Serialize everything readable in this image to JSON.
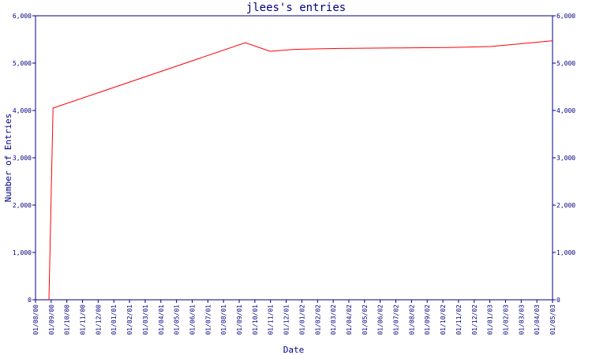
{
  "chart_data": {
    "type": "line",
    "title": "jlees's entries",
    "xlabel": "Date",
    "ylabel": "Number of Entries",
    "ylim": [
      0,
      6000
    ],
    "y_ticks": [
      0,
      1000,
      2000,
      3000,
      4000,
      5000,
      6000
    ],
    "y_tick_labels": [
      "0",
      "1,000",
      "2,000",
      "3,000",
      "4,000",
      "5,000",
      "6,000"
    ],
    "x_range": [
      "2000-08-01",
      "2003-05-01"
    ],
    "x_tick_labels": [
      "01/08/00",
      "01/09/00",
      "01/10/00",
      "01/11/00",
      "01/12/00",
      "01/01/01",
      "01/02/01",
      "01/03/01",
      "01/04/01",
      "01/05/01",
      "01/06/01",
      "01/07/01",
      "01/08/01",
      "01/09/01",
      "01/10/01",
      "01/11/01",
      "01/12/01",
      "01/01/02",
      "01/02/02",
      "01/03/02",
      "01/04/02",
      "01/05/02",
      "01/06/02",
      "01/07/02",
      "01/08/02",
      "01/09/02",
      "01/10/02",
      "01/11/02",
      "01/12/02",
      "01/01/03",
      "01/02/03",
      "01/03/03",
      "01/04/03",
      "01/05/03"
    ],
    "grid": false,
    "legend": "none",
    "series": [
      {
        "color": "#ff0000",
        "points": [
          {
            "x": "2000-08-27",
            "y": 0
          },
          {
            "x": "2000-09-04",
            "y": 4050
          },
          {
            "x": "2001-09-12",
            "y": 5430
          },
          {
            "x": "2001-10-30",
            "y": 5250
          },
          {
            "x": "2001-12-16",
            "y": 5290
          },
          {
            "x": "2002-03-12",
            "y": 5310
          },
          {
            "x": "2002-07-01",
            "y": 5320
          },
          {
            "x": "2002-10-11",
            "y": 5330
          },
          {
            "x": "2002-12-31",
            "y": 5350
          },
          {
            "x": "2003-04-30",
            "y": 5470
          }
        ]
      }
    ]
  }
}
